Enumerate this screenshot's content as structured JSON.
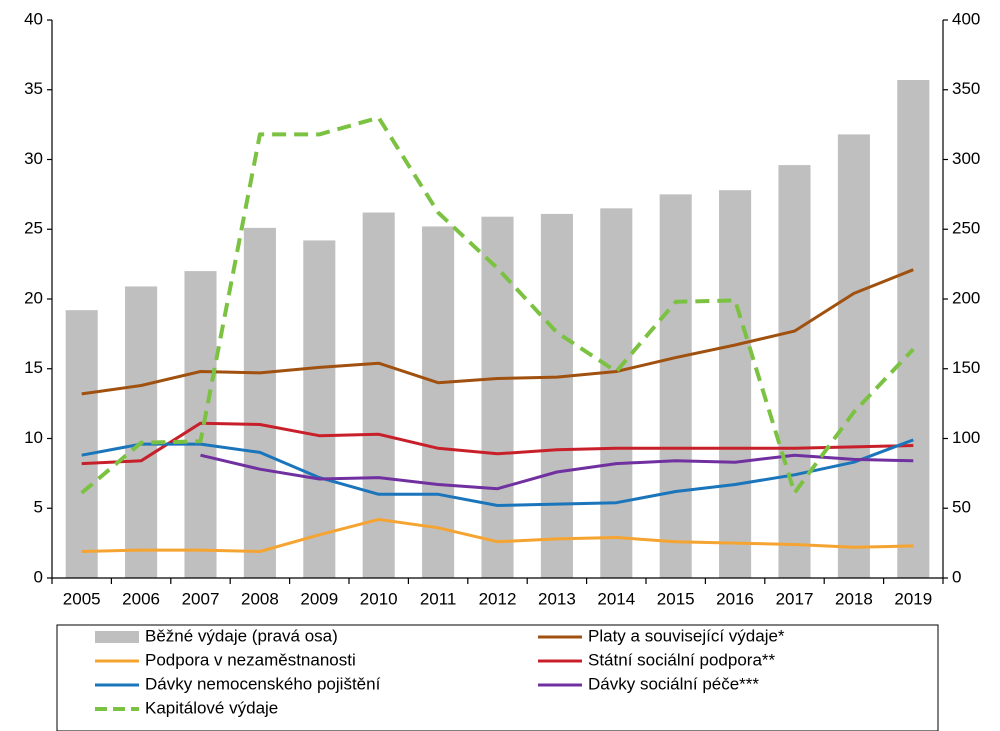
{
  "chart_data": {
    "type": "combo",
    "categories": [
      "2005",
      "2006",
      "2007",
      "2008",
      "2009",
      "2010",
      "2011",
      "2012",
      "2013",
      "2014",
      "2015",
      "2016",
      "2017",
      "2018",
      "2019"
    ],
    "ylim": [
      0,
      40
    ],
    "yticks": [
      0,
      5,
      10,
      15,
      20,
      25,
      30,
      35,
      40
    ],
    "y2lim": [
      0,
      400
    ],
    "y2ticks": [
      0,
      50,
      100,
      150,
      200,
      250,
      300,
      350,
      400
    ],
    "series": [
      {
        "name": "Běžné výdaje (pravá osa)",
        "type": "bar",
        "axis": "y2",
        "color": "#bfbfbf",
        "values": [
          192,
          209,
          220,
          251,
          242,
          262,
          252,
          259,
          261,
          265,
          275,
          278,
          296,
          318,
          357
        ]
      },
      {
        "name": "Platy a související výdaje*",
        "type": "line",
        "color": "#a0510f",
        "values": [
          13.2,
          13.8,
          14.8,
          14.7,
          15.1,
          15.4,
          14.0,
          14.3,
          14.4,
          14.8,
          15.8,
          16.7,
          17.7,
          20.4,
          22.1
        ]
      },
      {
        "name": "Podpora v nezaměstnanosti",
        "type": "line",
        "color": "#f5a431",
        "values": [
          1.9,
          2.0,
          2.0,
          1.9,
          3.1,
          4.2,
          3.6,
          2.6,
          2.8,
          2.9,
          2.6,
          2.5,
          2.4,
          2.2,
          2.3
        ]
      },
      {
        "name": "Státní sociální podpora**",
        "type": "line",
        "color": "#c8202a",
        "values": [
          8.2,
          8.4,
          11.1,
          11.0,
          10.2,
          10.3,
          9.3,
          8.9,
          9.2,
          9.3,
          9.3,
          9.3,
          9.3,
          9.4,
          9.5
        ]
      },
      {
        "name": "Dávky nemocenského pojištění",
        "type": "line",
        "color": "#1a75bb",
        "values": [
          8.8,
          9.6,
          9.6,
          9.0,
          7.2,
          6.0,
          6.0,
          5.2,
          5.3,
          5.4,
          6.2,
          6.7,
          7.4,
          8.3,
          9.9
        ]
      },
      {
        "name": "Dávky sociální péče***",
        "type": "line",
        "color": "#7030a0",
        "values": [
          null,
          null,
          8.8,
          7.8,
          7.1,
          7.2,
          6.7,
          6.4,
          7.6,
          8.2,
          8.4,
          8.3,
          8.8,
          8.5,
          8.4
        ]
      },
      {
        "name": "Kapitálové výdaje",
        "type": "line",
        "dashed": true,
        "color": "#7cc242",
        "values": [
          6.1,
          9.7,
          9.8,
          31.8,
          31.8,
          33.0,
          26.2,
          22.2,
          17.6,
          14.8,
          19.8,
          19.9,
          6.1,
          11.9,
          16.4
        ]
      }
    ]
  }
}
